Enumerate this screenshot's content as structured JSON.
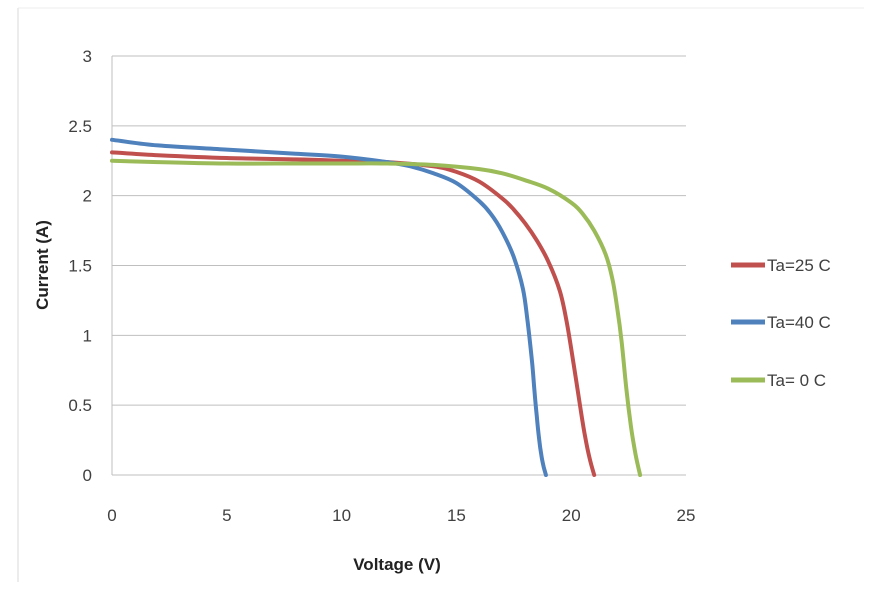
{
  "chart_data": {
    "type": "line",
    "xlabel": "Voltage (V)",
    "ylabel": "Current (A)",
    "xlim": [
      0,
      25
    ],
    "ylim": [
      0,
      3
    ],
    "xticks": [
      "0",
      "5",
      "10",
      "15",
      "20",
      "25"
    ],
    "yticks": [
      "0",
      "0.5",
      "1",
      "1.5",
      "2",
      "2.5",
      "3"
    ],
    "grid": "horizontal",
    "legend_position": "right",
    "series": [
      {
        "name": "Ta=25 C",
        "color": "#c0504d",
        "x": [
          0,
          2,
          5,
          8,
          10,
          12,
          14,
          15,
          16,
          17,
          17.5,
          18,
          18.5,
          19,
          19.5,
          19.8,
          20.1,
          20.4,
          20.6,
          20.8,
          21
        ],
        "y": [
          2.31,
          2.29,
          2.27,
          2.26,
          2.25,
          2.24,
          2.21,
          2.17,
          2.1,
          1.98,
          1.9,
          1.8,
          1.68,
          1.53,
          1.32,
          1.1,
          0.8,
          0.48,
          0.28,
          0.12,
          0
        ]
      },
      {
        "name": "Ta=40 C",
        "color": "#4f81bd",
        "x": [
          0,
          2,
          5,
          8,
          10,
          12,
          13,
          14,
          15,
          16,
          16.5,
          17,
          17.5,
          17.9,
          18.1,
          18.3,
          18.4,
          18.5,
          18.6,
          18.7,
          18.8,
          18.9
        ],
        "y": [
          2.4,
          2.36,
          2.33,
          2.3,
          2.28,
          2.24,
          2.21,
          2.16,
          2.09,
          1.96,
          1.87,
          1.74,
          1.56,
          1.33,
          1.1,
          0.8,
          0.6,
          0.42,
          0.26,
          0.14,
          0.06,
          0
        ]
      },
      {
        "name": "Ta= 0 C",
        "color": "#9bbb59",
        "x": [
          0,
          2,
          5,
          8,
          10,
          12,
          14,
          16,
          17,
          18,
          19,
          20,
          20.5,
          21,
          21.5,
          21.8,
          22,
          22.2,
          22.4,
          22.6,
          22.8,
          23
        ],
        "y": [
          2.25,
          2.24,
          2.23,
          2.23,
          2.23,
          2.23,
          2.22,
          2.19,
          2.16,
          2.11,
          2.05,
          1.95,
          1.87,
          1.75,
          1.58,
          1.4,
          1.2,
          0.95,
          0.62,
          0.35,
          0.15,
          0
        ]
      }
    ]
  }
}
